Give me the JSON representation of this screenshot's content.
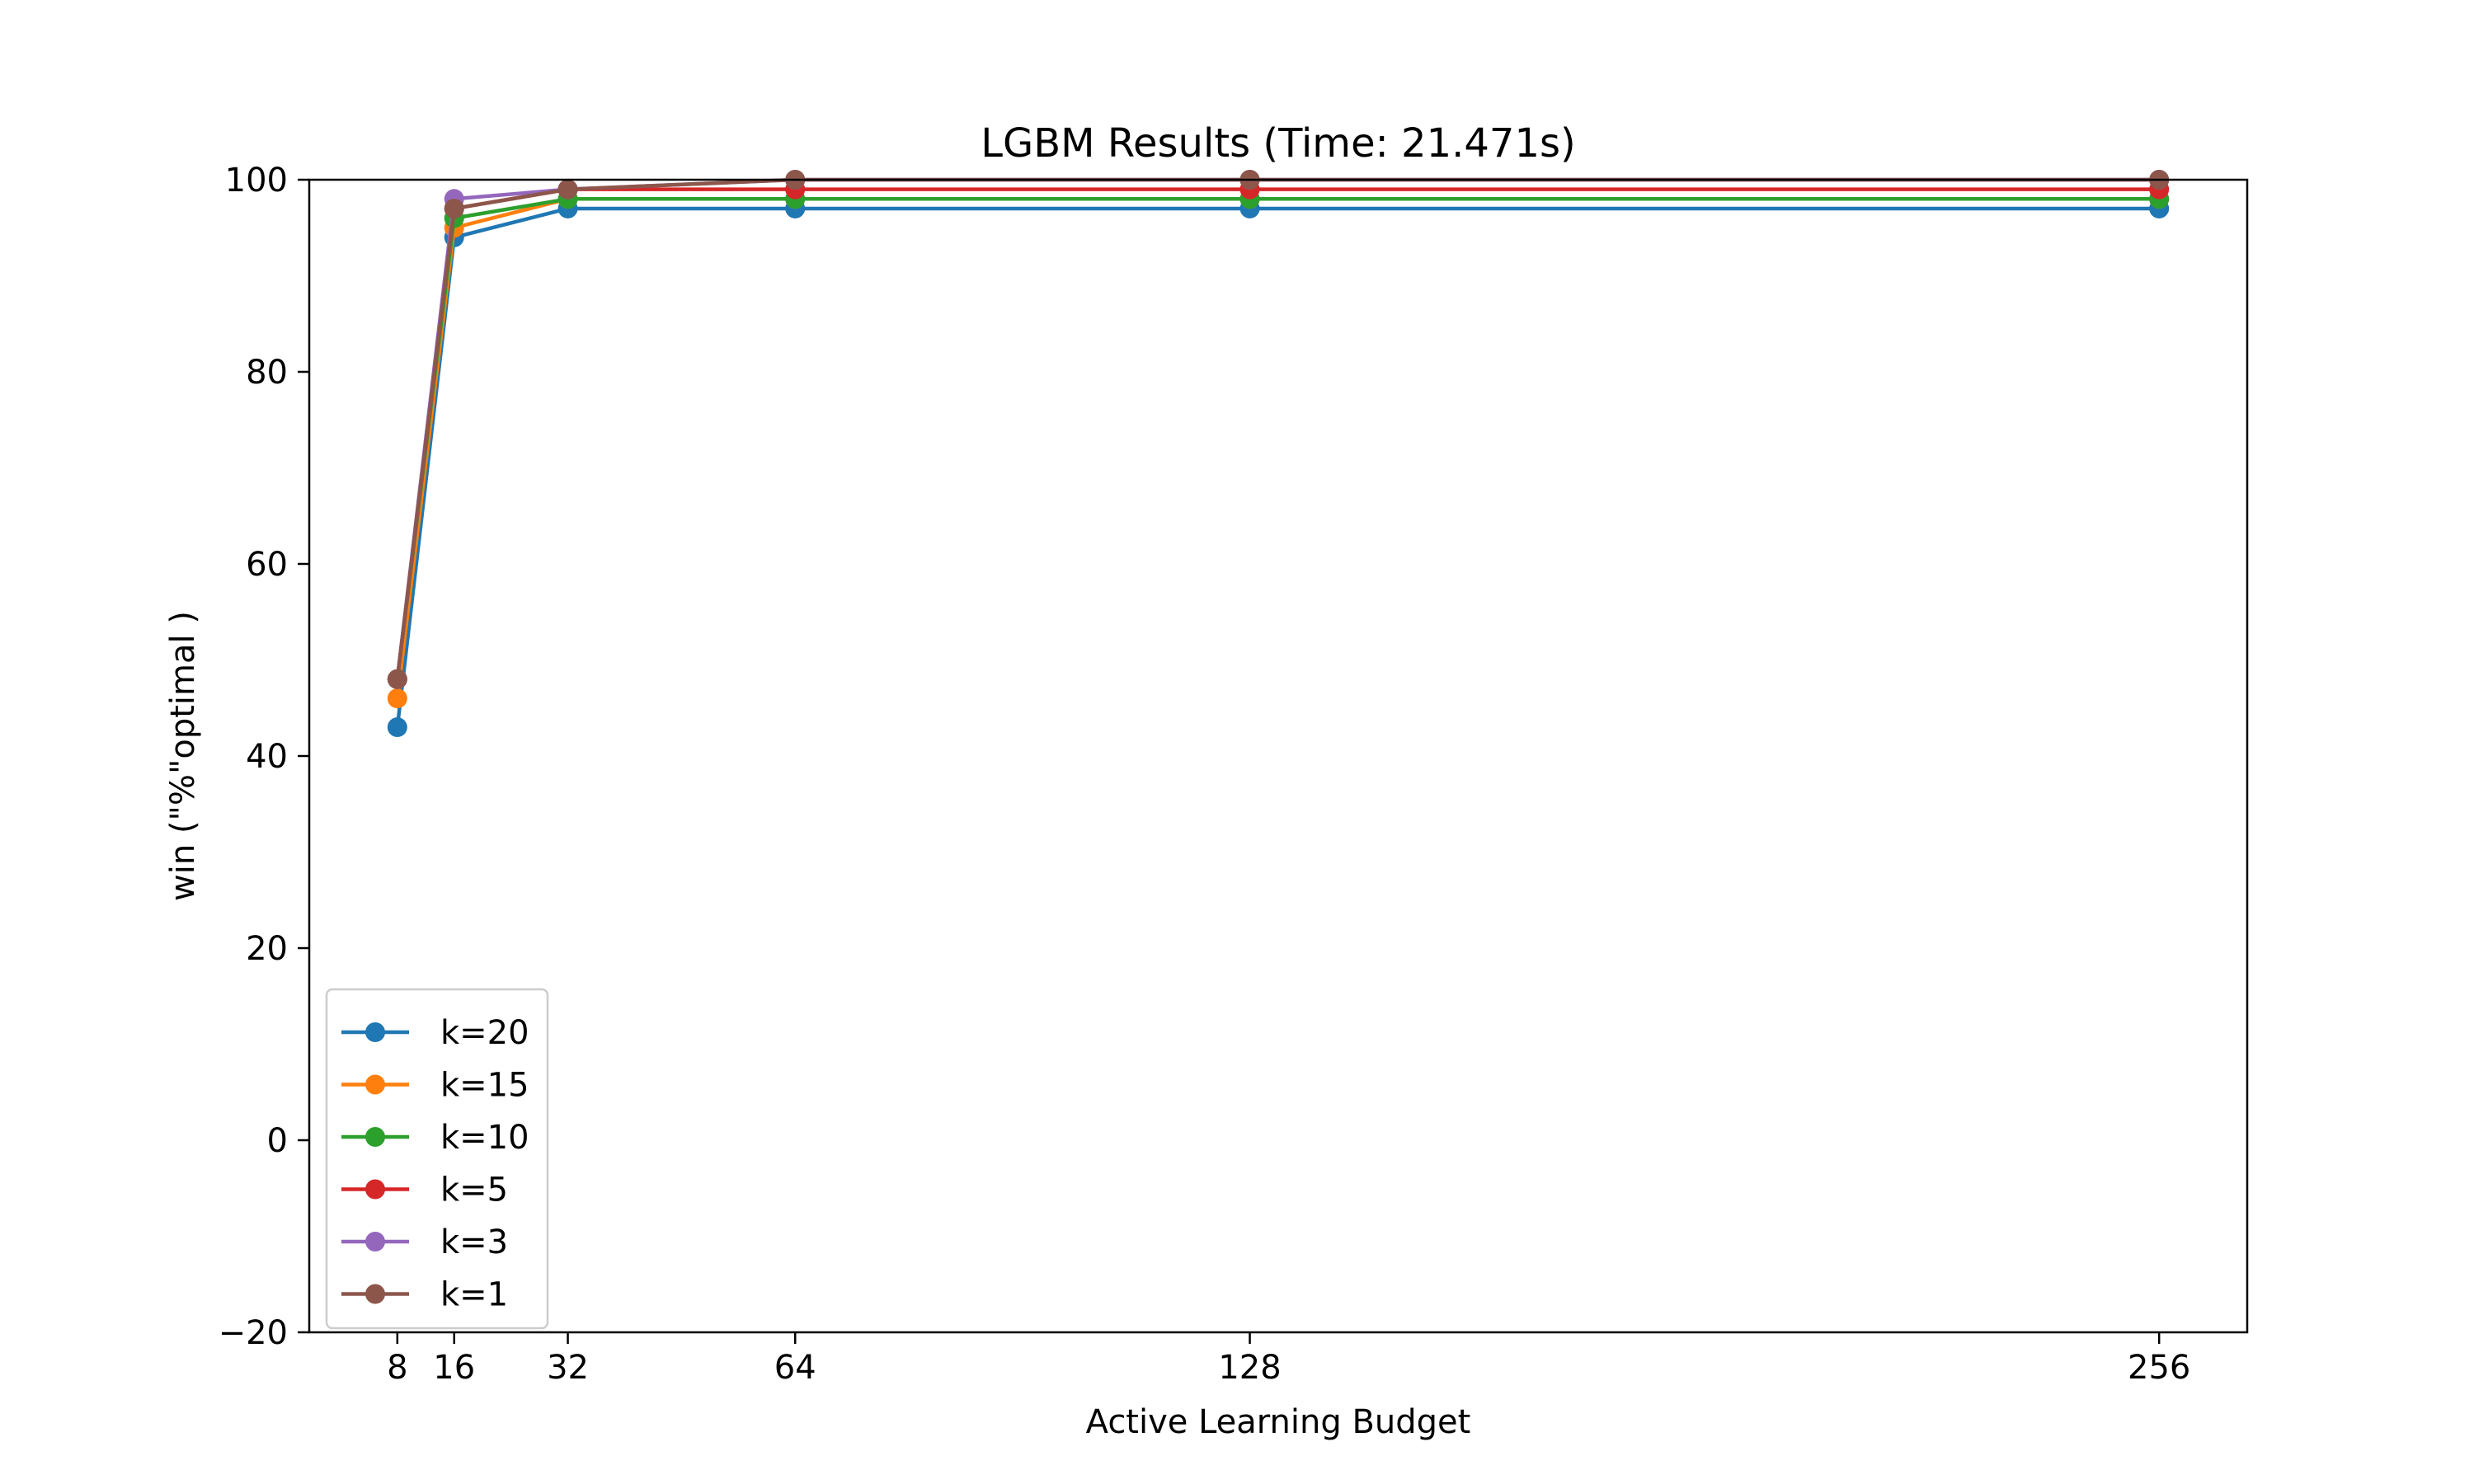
{
  "chart_data": {
    "type": "line",
    "title": "LGBM Results (Time: 21.471s)",
    "xlabel": "Active Learning Budget",
    "ylabel": "win (\"%\"optimal )",
    "x": [
      8,
      16,
      32,
      64,
      128,
      256
    ],
    "xticks": [
      "8",
      "16",
      "32",
      "64",
      "128",
      "256"
    ],
    "yticks": [
      "−20",
      "0",
      "20",
      "40",
      "60",
      "80",
      "100"
    ],
    "xlim": [
      -4.4,
      268.4
    ],
    "ylim": [
      -20,
      100
    ],
    "legend_position": "lower-left",
    "series": [
      {
        "name": "k=20",
        "color": "#1f77b4",
        "values": [
          43,
          94,
          97,
          97,
          97,
          97
        ]
      },
      {
        "name": "k=15",
        "color": "#ff7f0e",
        "values": [
          46,
          95,
          98,
          98,
          98,
          98
        ]
      },
      {
        "name": "k=10",
        "color": "#2ca02c",
        "values": [
          48,
          96,
          98,
          98,
          98,
          98
        ]
      },
      {
        "name": "k=5",
        "color": "#d62728",
        "values": [
          48,
          97,
          99,
          99,
          99,
          99
        ]
      },
      {
        "name": "k=3",
        "color": "#9467bd",
        "values": [
          48,
          98,
          99,
          100,
          100,
          100
        ]
      },
      {
        "name": "k=1",
        "color": "#8c564b",
        "values": [
          48,
          97,
          99,
          100,
          100,
          100
        ]
      }
    ]
  }
}
